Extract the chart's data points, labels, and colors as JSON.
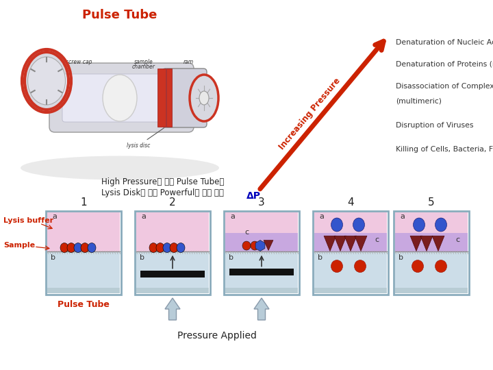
{
  "title": "Pulse Tube",
  "bg_color": "#ffffff",
  "arrow_color": "#cc2200",
  "arrow_label": "Increasing Pressure",
  "arrow_label_color": "#cc2200",
  "delta_p_label": "ΔP",
  "delta_p_color": "#0000bb",
  "pressure_labels": [
    "Denaturation of Nucleic Acids",
    "Denaturation of Proteins (monomeric)",
    "Disassociation of Complex Structures",
    "(multimeric)",
    "Disruption of Viruses",
    "Killing of Cells, Bacteria, Fungi"
  ],
  "pressure_label_color": "#333333",
  "korean_text1": "High Pressure에 의한 Pulse Tube의",
  "korean_text2": "Lysis Disk를 통한 Powerful한 시료 파쉬",
  "step_labels": [
    "1",
    "2",
    "3",
    "4",
    "5"
  ],
  "lysis_buffer_label": "Lysis buffer",
  "sample_label": "Sample",
  "pulse_tube_label": "Pulse Tube",
  "pressure_applied_label": "Pressure Applied",
  "tube_border_color": "#8aabbc",
  "tube_bg_a_pink": "#f0c8e0",
  "tube_bg_b_blue": "#ccdde8",
  "tube_bg_purple": "#c8a8e0",
  "tube_bg_gray": "#b8ccd4",
  "tube_bar_color": "#111111",
  "red_color": "#cc2200",
  "blue_color": "#3355cc",
  "dark_red": "#7a1e1e",
  "label_color": "#cc2200",
  "membrane_color": "#888888",
  "arrow_up_color": "#b8ccd8"
}
